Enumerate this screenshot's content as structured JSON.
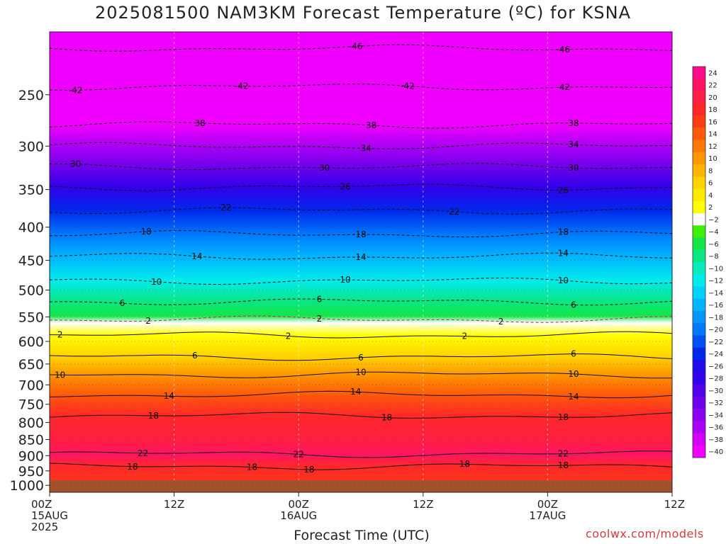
{
  "title": "2025081500 NAM3KM Forecast Temperature (ºC) for KSNA",
  "watermark": "coolwx.com/models",
  "chart_data": {
    "type": "heatmap",
    "title": "2025081500 NAM3KM Forecast Temperature (ºC) for KSNA",
    "xlabel": "Forecast Time (UTC)",
    "ylabel": "",
    "x_ticks": [
      {
        "hour": 0,
        "lines": [
          "00Z",
          "15AUG",
          "2025"
        ]
      },
      {
        "hour": 12,
        "lines": [
          "12Z"
        ]
      },
      {
        "hour": 24,
        "lines": [
          "00Z",
          "16AUG"
        ]
      },
      {
        "hour": 36,
        "lines": [
          "12Z"
        ]
      },
      {
        "hour": 48,
        "lines": [
          "00Z",
          "17AUG"
        ]
      },
      {
        "hour": 60,
        "lines": [
          "12Z"
        ]
      }
    ],
    "x_range_hours": [
      0,
      60
    ],
    "y_axis": "pressure (hPa), log scale, decreasing upward",
    "y_range": [
      1025,
      200
    ],
    "y_ticks": [
      1000,
      950,
      900,
      850,
      800,
      750,
      700,
      650,
      600,
      550,
      500,
      450,
      400,
      350,
      300,
      250
    ],
    "grid": "dotted vertical lines at tick hours, dotted horizontal lines at pressure ticks",
    "colorbar": {
      "labels": [
        "24",
        "22",
        "20",
        "18",
        "16",
        "14",
        "12",
        "10",
        "8",
        "6",
        "4",
        "2",
        "−2",
        "−4",
        "−6",
        "−8",
        "−10",
        "−12",
        "−14",
        "−16",
        "−18",
        "−20",
        "−22",
        "−24",
        "−26",
        "−28",
        "−30",
        "−32",
        "−34",
        "−36",
        "−38",
        "−40"
      ],
      "colors": [
        "#ff0a8c",
        "#ff1464",
        "#ff1e46",
        "#ff2828",
        "#ff3c14",
        "#ff5a0a",
        "#ff7800",
        "#ff9600",
        "#ffb400",
        "#ffd200",
        "#ffeb00",
        "#ffff00",
        "#ffffff",
        "#3cf00a",
        "#14e646",
        "#0ae682",
        "#0aebbe",
        "#00ebeb",
        "#00d2ff",
        "#00b4ff",
        "#0096ff",
        "#0078ff",
        "#0050f5",
        "#0028eb",
        "#1e0aeb",
        "#3200eb",
        "#5000eb",
        "#6e00eb",
        "#8c00f0",
        "#aa00f5",
        "#d200fa",
        "#f000ff"
      ]
    },
    "contours": [
      {
        "temp": -46,
        "p": 212,
        "labels": [
          {
            "hour": 29.5,
            "text": "-46"
          },
          {
            "hour": 49.5,
            "text": "-46"
          }
        ]
      },
      {
        "temp": -42,
        "p": 243,
        "labels": [
          {
            "hour": 2.5,
            "text": "-42"
          },
          {
            "hour": 18.5,
            "text": "-42"
          },
          {
            "hour": 34.5,
            "text": "-42"
          },
          {
            "hour": 49.5,
            "text": "-42"
          }
        ]
      },
      {
        "temp": -38,
        "p": 278,
        "labels": [
          {
            "hour": 14.5,
            "text": "38"
          },
          {
            "hour": 31,
            "text": "38"
          },
          {
            "hour": 50.5,
            "text": "38"
          }
        ]
      },
      {
        "temp": -34,
        "p": 300,
        "labels": [
          {
            "hour": 30.5,
            "text": "34"
          },
          {
            "hour": 50.5,
            "text": "34"
          }
        ]
      },
      {
        "temp": -30,
        "p": 323,
        "labels": [
          {
            "hour": 2.5,
            "text": "30"
          },
          {
            "hour": 26.5,
            "text": "30"
          },
          {
            "hour": 50.5,
            "text": "30"
          }
        ]
      },
      {
        "temp": -26,
        "p": 347,
        "labels": [
          {
            "hour": 28.5,
            "text": "26"
          },
          {
            "hour": 49.5,
            "text": "26"
          }
        ]
      },
      {
        "temp": -22,
        "p": 377,
        "labels": [
          {
            "hour": 17,
            "text": "22"
          },
          {
            "hour": 39,
            "text": "22"
          }
        ]
      },
      {
        "temp": -18,
        "p": 410,
        "labels": [
          {
            "hour": 9.3,
            "text": "18"
          },
          {
            "hour": 30,
            "text": "18"
          },
          {
            "hour": 49.5,
            "text": "18"
          }
        ]
      },
      {
        "temp": -14,
        "p": 444,
        "labels": [
          {
            "hour": 14.2,
            "text": "14"
          },
          {
            "hour": 30,
            "text": "14"
          },
          {
            "hour": 49.5,
            "text": "14"
          }
        ]
      },
      {
        "temp": -10,
        "p": 484,
        "labels": [
          {
            "hour": 10.3,
            "text": "10"
          },
          {
            "hour": 28.5,
            "text": "10"
          },
          {
            "hour": 49.5,
            "text": "10"
          }
        ]
      },
      {
        "temp": -6,
        "p": 521,
        "labels": [
          {
            "hour": 7,
            "text": "6"
          },
          {
            "hour": 26,
            "text": "6"
          },
          {
            "hour": 50.5,
            "text": "6"
          }
        ]
      },
      {
        "temp": -2,
        "p": 555,
        "labels": [
          {
            "hour": 9.5,
            "text": "2"
          },
          {
            "hour": 26,
            "text": "2"
          },
          {
            "hour": 43.5,
            "text": "2"
          }
        ]
      },
      {
        "temp": 2,
        "p": 587,
        "labels": [
          {
            "hour": 1,
            "text": "2"
          },
          {
            "hour": 23,
            "text": "2"
          },
          {
            "hour": 40,
            "text": "2"
          }
        ]
      },
      {
        "temp": 6,
        "p": 634,
        "labels": [
          {
            "hour": 14,
            "text": "6"
          },
          {
            "hour": 30,
            "text": "6"
          },
          {
            "hour": 50.5,
            "text": "6"
          }
        ]
      },
      {
        "temp": 10,
        "p": 675,
        "labels": [
          {
            "hour": 1,
            "text": "10"
          },
          {
            "hour": 30,
            "text": "10"
          },
          {
            "hour": 50.5,
            "text": "10"
          }
        ]
      },
      {
        "temp": 14,
        "p": 725,
        "labels": [
          {
            "hour": 11.5,
            "text": "14"
          },
          {
            "hour": 29.5,
            "text": "14"
          },
          {
            "hour": 50.5,
            "text": "14"
          }
        ]
      },
      {
        "temp": 18,
        "p": 781,
        "labels": [
          {
            "hour": 10,
            "text": "18"
          },
          {
            "hour": 32.5,
            "text": "18"
          },
          {
            "hour": 49.5,
            "text": "18"
          }
        ]
      },
      {
        "temp": 22,
        "p": 895,
        "labels": [
          {
            "hour": 9,
            "text": "22"
          },
          {
            "hour": 24,
            "text": "22"
          },
          {
            "hour": 49.5,
            "text": "22"
          }
        ]
      },
      {
        "temp": 18,
        "p": 935,
        "labels": [
          {
            "hour": 8,
            "text": "18"
          },
          {
            "hour": 19.5,
            "text": "18"
          },
          {
            "hour": 25,
            "text": "18"
          },
          {
            "hour": 49.5,
            "text": "18"
          },
          {
            "hour": 40,
            "text": "18"
          }
        ]
      }
    ]
  }
}
